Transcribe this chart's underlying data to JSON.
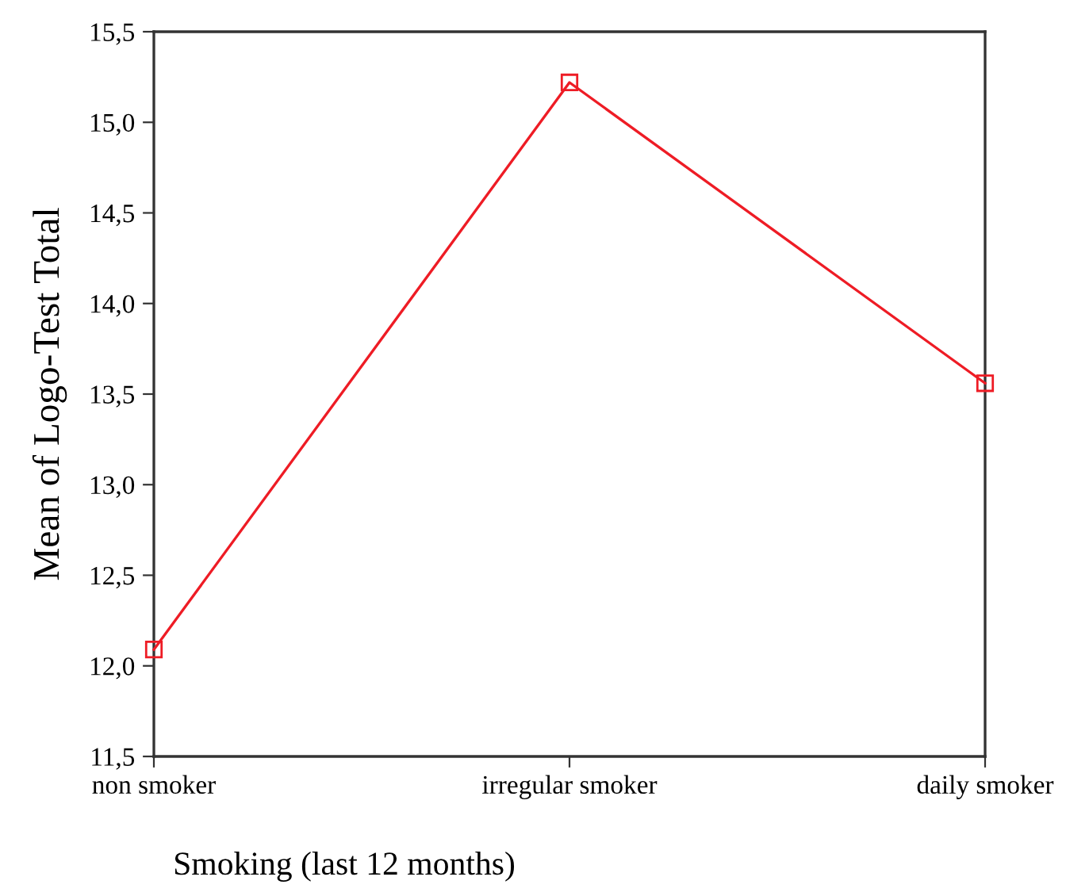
{
  "chart_data": {
    "type": "line",
    "xlabel": "Smoking (last 12 months)",
    "ylabel": "Mean of Logo-Test Total",
    "categories": [
      "non smoker",
      "irregular smoker",
      "daily smoker"
    ],
    "series": [
      {
        "color": "#ee1c25",
        "values": [
          12.09,
          15.22,
          13.56
        ]
      }
    ],
    "ylim": [
      11.5,
      15.5
    ],
    "yticks": [
      {
        "value": 11.5,
        "label": "11,5"
      },
      {
        "value": 12.0,
        "label": "12,0"
      },
      {
        "value": 12.5,
        "label": "12,5"
      },
      {
        "value": 13.0,
        "label": "13,0"
      },
      {
        "value": 13.5,
        "label": "13,5"
      },
      {
        "value": 14.0,
        "label": "14,0"
      },
      {
        "value": 14.5,
        "label": "14,5"
      },
      {
        "value": 15.0,
        "label": "15,0"
      },
      {
        "value": 15.5,
        "label": "15,5"
      }
    ],
    "marker": "square",
    "line_style": "solid",
    "grid": false,
    "legend": false
  }
}
